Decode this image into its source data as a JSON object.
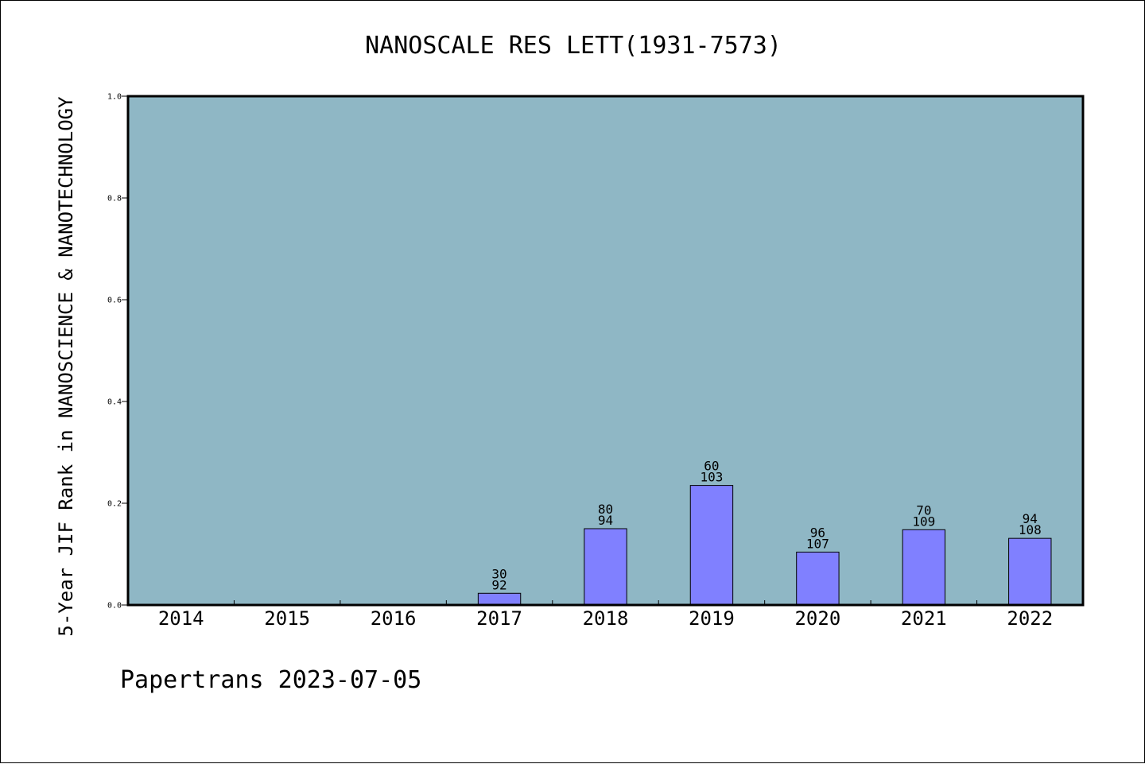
{
  "chart_data": {
    "type": "bar",
    "title": "NANOSCALE RES LETT(1931-7573)",
    "xlabel": "",
    "ylabel": "5-Year JIF Rank in NANOSCIENCE & NANOTECHNOLOGY",
    "categories": [
      "2014",
      "2015",
      "2016",
      "2017",
      "2018",
      "2019",
      "2020",
      "2021",
      "2022"
    ],
    "values": [
      0,
      0,
      0,
      0.023,
      0.15,
      0.235,
      0.104,
      0.148,
      0.131
    ],
    "bar_labels": [
      null,
      null,
      null,
      {
        "rank": "30",
        "total": "92"
      },
      {
        "rank": "80",
        "total": "94"
      },
      {
        "rank": "60",
        "total": "103"
      },
      {
        "rank": "96",
        "total": "107"
      },
      {
        "rank": "70",
        "total": "109"
      },
      {
        "rank": "94",
        "total": "108"
      }
    ],
    "ylim": [
      0,
      1.0
    ],
    "yticks": [
      "0.0",
      "0.2",
      "0.4",
      "0.6",
      "0.8",
      "1.0"
    ],
    "grid": false,
    "colors": {
      "plot_background": "#8fb7c5",
      "bar": "#8080ff",
      "bar_edge": "#000000"
    }
  },
  "footer": "Papertrans 2023-07-05"
}
